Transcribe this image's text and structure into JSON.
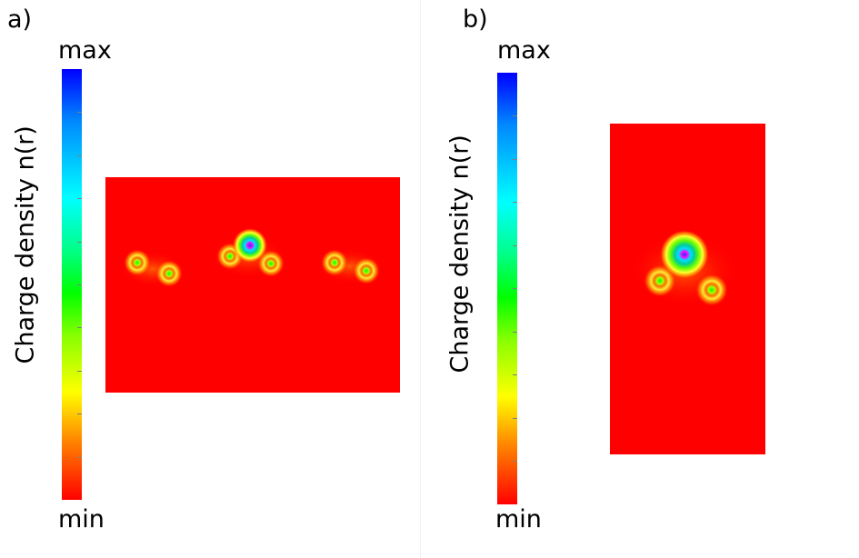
{
  "panels": [
    {
      "label": "a)",
      "colorbar": {
        "max_label": "max",
        "min_label": "min",
        "title": "Charge density n(r)"
      }
    },
    {
      "label": "b)",
      "colorbar": {
        "max_label": "max",
        "min_label": "min",
        "title": "Charge density n(r)"
      }
    }
  ],
  "colors": {
    "background_field": "#ff0000",
    "colormap": [
      "#0000ff",
      "#0088ff",
      "#00ffff",
      "#00ff88",
      "#00ff00",
      "#88ff00",
      "#ffff00",
      "#ff8800",
      "#ff0000"
    ]
  }
}
